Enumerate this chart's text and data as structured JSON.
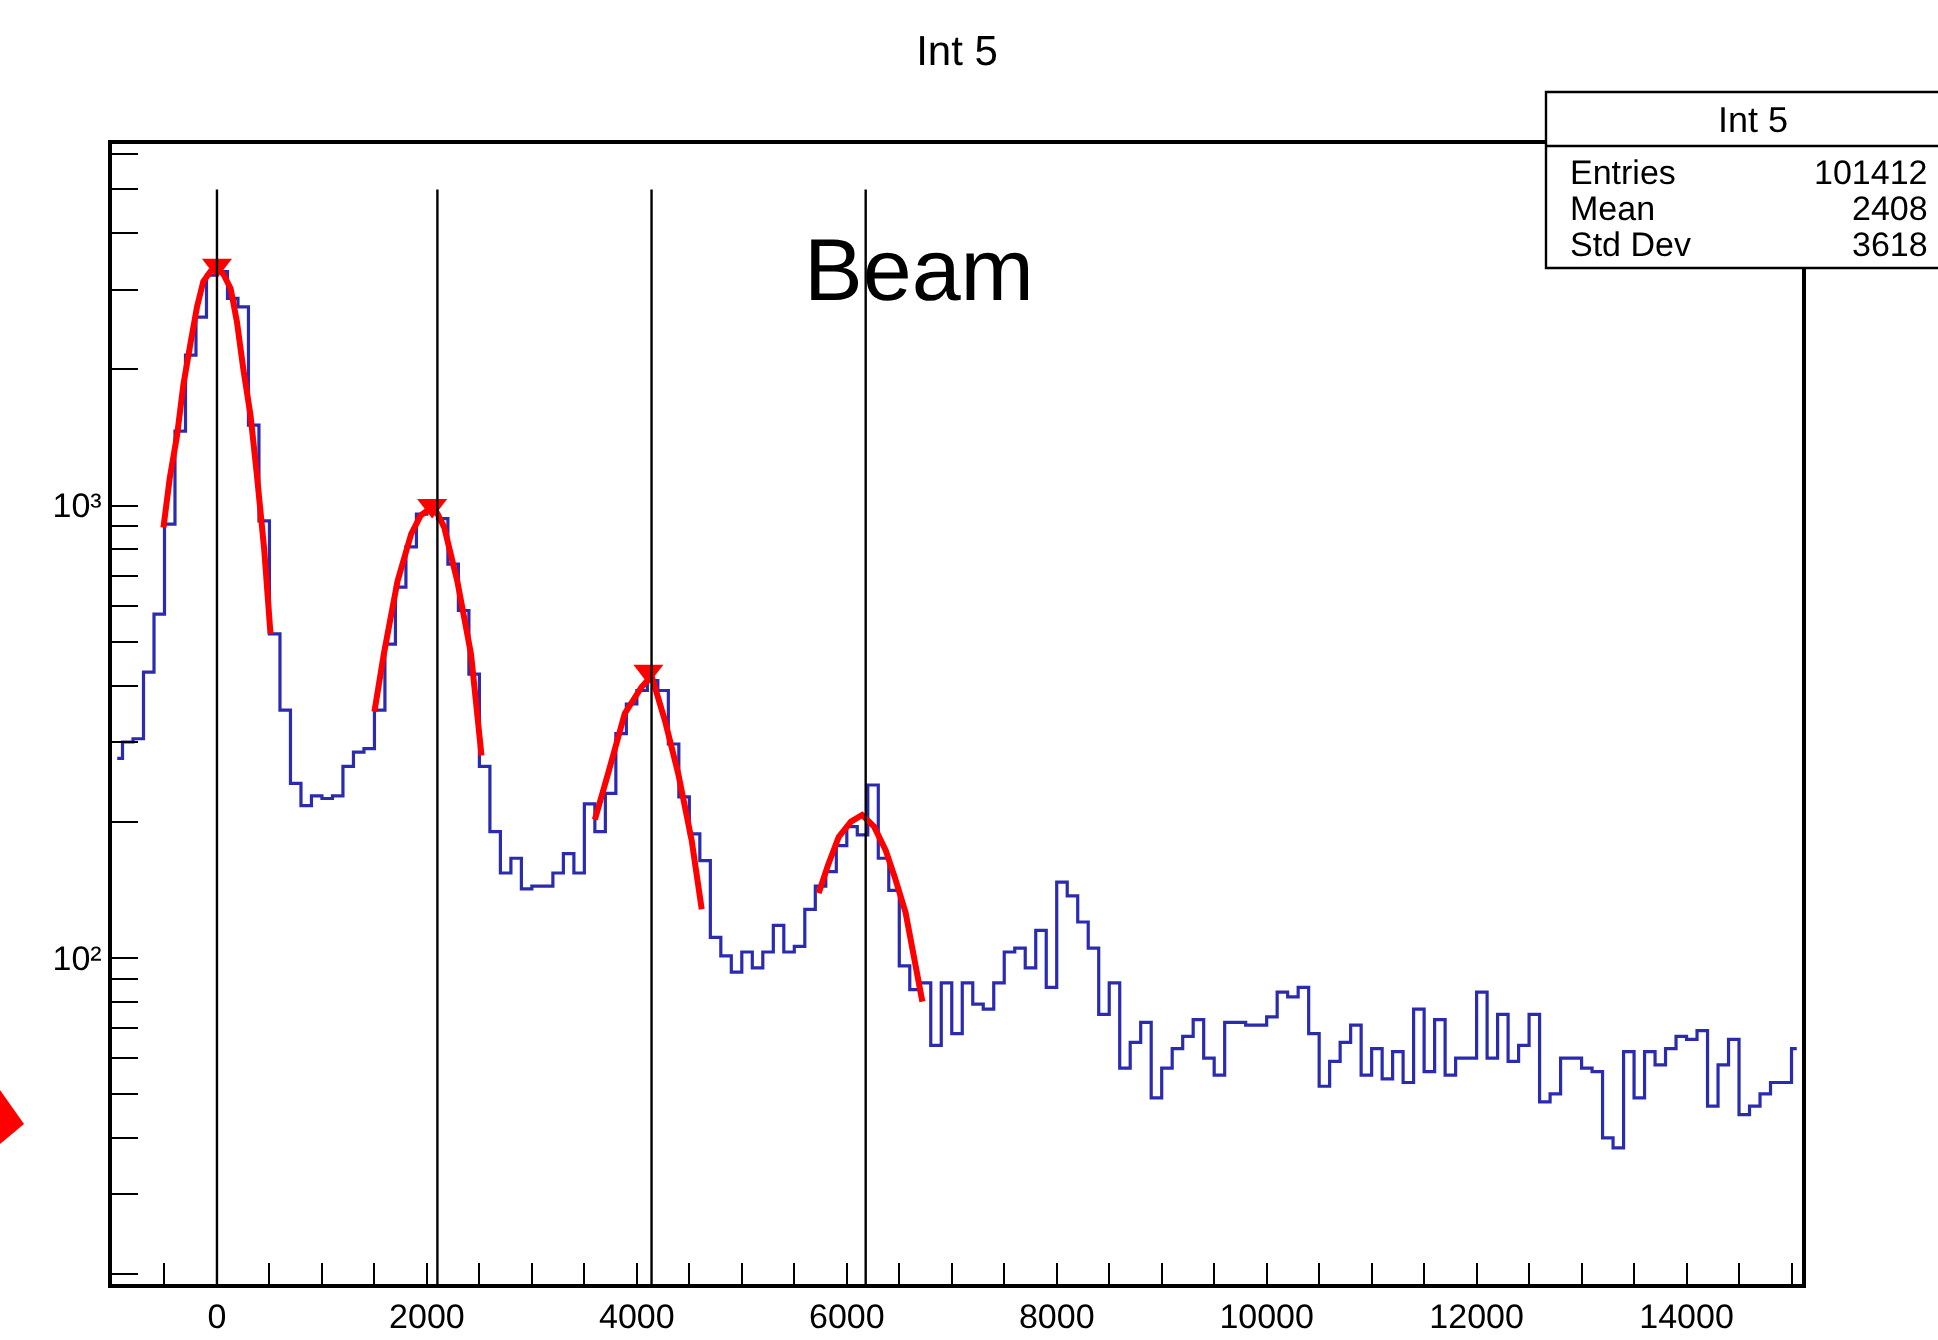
{
  "chart_data": {
    "type": "step",
    "title": "Int 5",
    "x": [
      -950,
      -850,
      -750,
      -650,
      -550,
      -450,
      -350,
      -250,
      -150,
      -50,
      50,
      150,
      250,
      350,
      450,
      550,
      650,
      750,
      850,
      950,
      1050,
      1150,
      1250,
      1350,
      1450,
      1550,
      1650,
      1750,
      1850,
      1950,
      2050,
      2150,
      2250,
      2350,
      2450,
      2550,
      2650,
      2750,
      2850,
      2950,
      3050,
      3150,
      3250,
      3350,
      3450,
      3550,
      3650,
      3750,
      3850,
      3950,
      4050,
      4150,
      4250,
      4350,
      4450,
      4550,
      4650,
      4750,
      4850,
      4950,
      5050,
      5150,
      5250,
      5350,
      5450,
      5550,
      5650,
      5750,
      5850,
      5950,
      6050,
      6150,
      6250,
      6350,
      6450,
      6550,
      6650,
      6750,
      6850,
      6950,
      7050,
      7150,
      7250,
      7350,
      7450,
      7550,
      7650,
      7750,
      7850,
      7950,
      8050,
      8150,
      8250,
      8350,
      8450,
      8550,
      8650,
      8750,
      8850,
      8950,
      9050,
      9150,
      9250,
      9350,
      9450,
      9550,
      9650,
      9750,
      9850,
      9950,
      10050,
      10150,
      10250,
      10350,
      10450,
      10550,
      10650,
      10750,
      10850,
      10950,
      11050,
      11150,
      11250,
      11350,
      11450,
      11550,
      11650,
      11750,
      11850,
      11950,
      12050,
      12150,
      12250,
      12350,
      12450,
      12550,
      12650,
      12750,
      12850,
      12950,
      13050,
      13150,
      13250,
      13350,
      13450,
      13550,
      13650,
      13750,
      13850,
      13950,
      14050,
      14150,
      14250,
      14350,
      14450,
      14550,
      14650,
      14750,
      14850,
      14950,
      15050
    ],
    "values": [
      276,
      300,
      305,
      428,
      575,
      910,
      1460,
      2150,
      2610,
      3230,
      3290,
      2870,
      2750,
      1505,
      925,
      520,
      353,
      243,
      217,
      228,
      225,
      228,
      265,
      285,
      290,
      353,
      494,
      660,
      810,
      957,
      973,
      935,
      742,
      586,
      424,
      265,
      190,
      154,
      166,
      142,
      144,
      144,
      154,
      170,
      154,
      219,
      190,
      231,
      313,
      364,
      390,
      410,
      390,
      297,
      227,
      188,
      164,
      111,
      101,
      93,
      103,
      95,
      103,
      118,
      103,
      106,
      128,
      144,
      155,
      177,
      195,
      187,
      241,
      166,
      141,
      96,
      85,
      88,
      64,
      88,
      68,
      88,
      79,
      77,
      88,
      103,
      105,
      95,
      115,
      86,
      147,
      137,
      120,
      105,
      75,
      88,
      57,
      65,
      72,
      49,
      57,
      63,
      67,
      73,
      60,
      55,
      72,
      72,
      71,
      71,
      74,
      84,
      82,
      86,
      68,
      52,
      59,
      65,
      71,
      55,
      63,
      54,
      62,
      53,
      77,
      56,
      73,
      55,
      60,
      60,
      84,
      60,
      75,
      59,
      64,
      75,
      48,
      50,
      60,
      60,
      57,
      56,
      40,
      38,
      62,
      49,
      62,
      58,
      63,
      67,
      66,
      69,
      47,
      58,
      66,
      45,
      47,
      50,
      53,
      53,
      63
    ],
    "color": "#2b2bb0",
    "series": [
      {
        "type": "line",
        "color": "#ff0000",
        "line_style": "solid",
        "x": [
          -510,
          -450,
          -380,
          -320,
          -250,
          -190,
          -130,
          -60,
          0,
          60,
          130,
          190,
          250,
          320,
          380,
          450,
          510
        ],
        "values": [
          894,
          1150,
          1430,
          1850,
          2300,
          2750,
          3130,
          3300,
          3350,
          3250,
          3020,
          2550,
          2010,
          1580,
          1170,
          800,
          520
        ]
      },
      {
        "type": "line",
        "color": "#ff0000",
        "line_style": "solid",
        "x": [
          1500,
          1590,
          1720,
          1850,
          1940,
          2030,
          2100,
          2165,
          2290,
          2420,
          2520
        ],
        "values": [
          350,
          470,
          680,
          865,
          950,
          985,
          960,
          895,
          680,
          470,
          280
        ]
      },
      {
        "type": "line",
        "color": "#ff0000",
        "line_style": "solid",
        "x": [
          3600,
          3725,
          3885,
          4045,
          4140,
          4267,
          4395,
          4522,
          4618
        ],
        "values": [
          202,
          255,
          347,
          397,
          420,
          335,
          255,
          182,
          128
        ]
      },
      {
        "type": "line",
        "color": "#ff0000",
        "line_style": "solid",
        "x": [
          5732,
          5820,
          5923,
          6040,
          6146,
          6260,
          6370,
          6460,
          6560,
          6720
        ],
        "values": [
          139,
          160,
          185,
          200,
          207,
          195,
          173,
          150,
          126,
          80
        ]
      },
      {
        "type": "scatter",
        "color": "#ff0000",
        "marker": "triangle",
        "x": [
          0,
          2050,
          4110
        ],
        "values": [
          3400,
          1000,
          430
        ]
      }
    ],
    "ref_lines": [
      {
        "axis": "x",
        "value": 0,
        "color": "#000000"
      },
      {
        "axis": "x",
        "value": 2100,
        "color": "#000000"
      },
      {
        "axis": "x",
        "value": 4140,
        "color": "#000000"
      },
      {
        "axis": "x",
        "value": 6180,
        "color": "#000000"
      }
    ],
    "annotations": [
      "Beam",
      "Int 5",
      "Entries",
      "101412",
      "Mean",
      "2408",
      "Std Dev",
      "3618"
    ],
    "xlim": [
      -1000,
      15100
    ],
    "xticks": [
      0,
      2000,
      4000,
      6000,
      8000,
      10000,
      12000,
      14000,
      {
        "value": -500,
        "label": null
      },
      {
        "value": 500,
        "label": null
      },
      {
        "value": 1000,
        "label": null
      },
      {
        "value": 1500,
        "label": null
      },
      {
        "value": 2500,
        "label": null
      },
      {
        "value": 3000,
        "label": null
      },
      {
        "value": 3500,
        "label": null
      },
      {
        "value": 4500,
        "label": null
      },
      {
        "value": 5000,
        "label": null
      },
      {
        "value": 5500,
        "label": null
      },
      {
        "value": 6500,
        "label": null
      },
      {
        "value": 7000,
        "label": null
      },
      {
        "value": 7500,
        "label": null
      },
      {
        "value": 8500,
        "label": null
      },
      {
        "value": 9000,
        "label": null
      },
      {
        "value": 9500,
        "label": null
      },
      {
        "value": 10500,
        "label": null
      },
      {
        "value": 11000,
        "label": null
      },
      {
        "value": 11500,
        "label": null
      },
      {
        "value": 12500,
        "label": null
      },
      {
        "value": 13000,
        "label": null
      },
      {
        "value": 13500,
        "label": null
      },
      {
        "value": 14500,
        "label": null
      },
      {
        "value": 15000,
        "label": null
      }
    ],
    "ylim": [
      19,
      6300
    ],
    "yticks": [
      {
        "value": 100,
        "label": "10²"
      },
      {
        "value": 1000,
        "label": "10³"
      }
    ],
    "log": "y"
  }
}
